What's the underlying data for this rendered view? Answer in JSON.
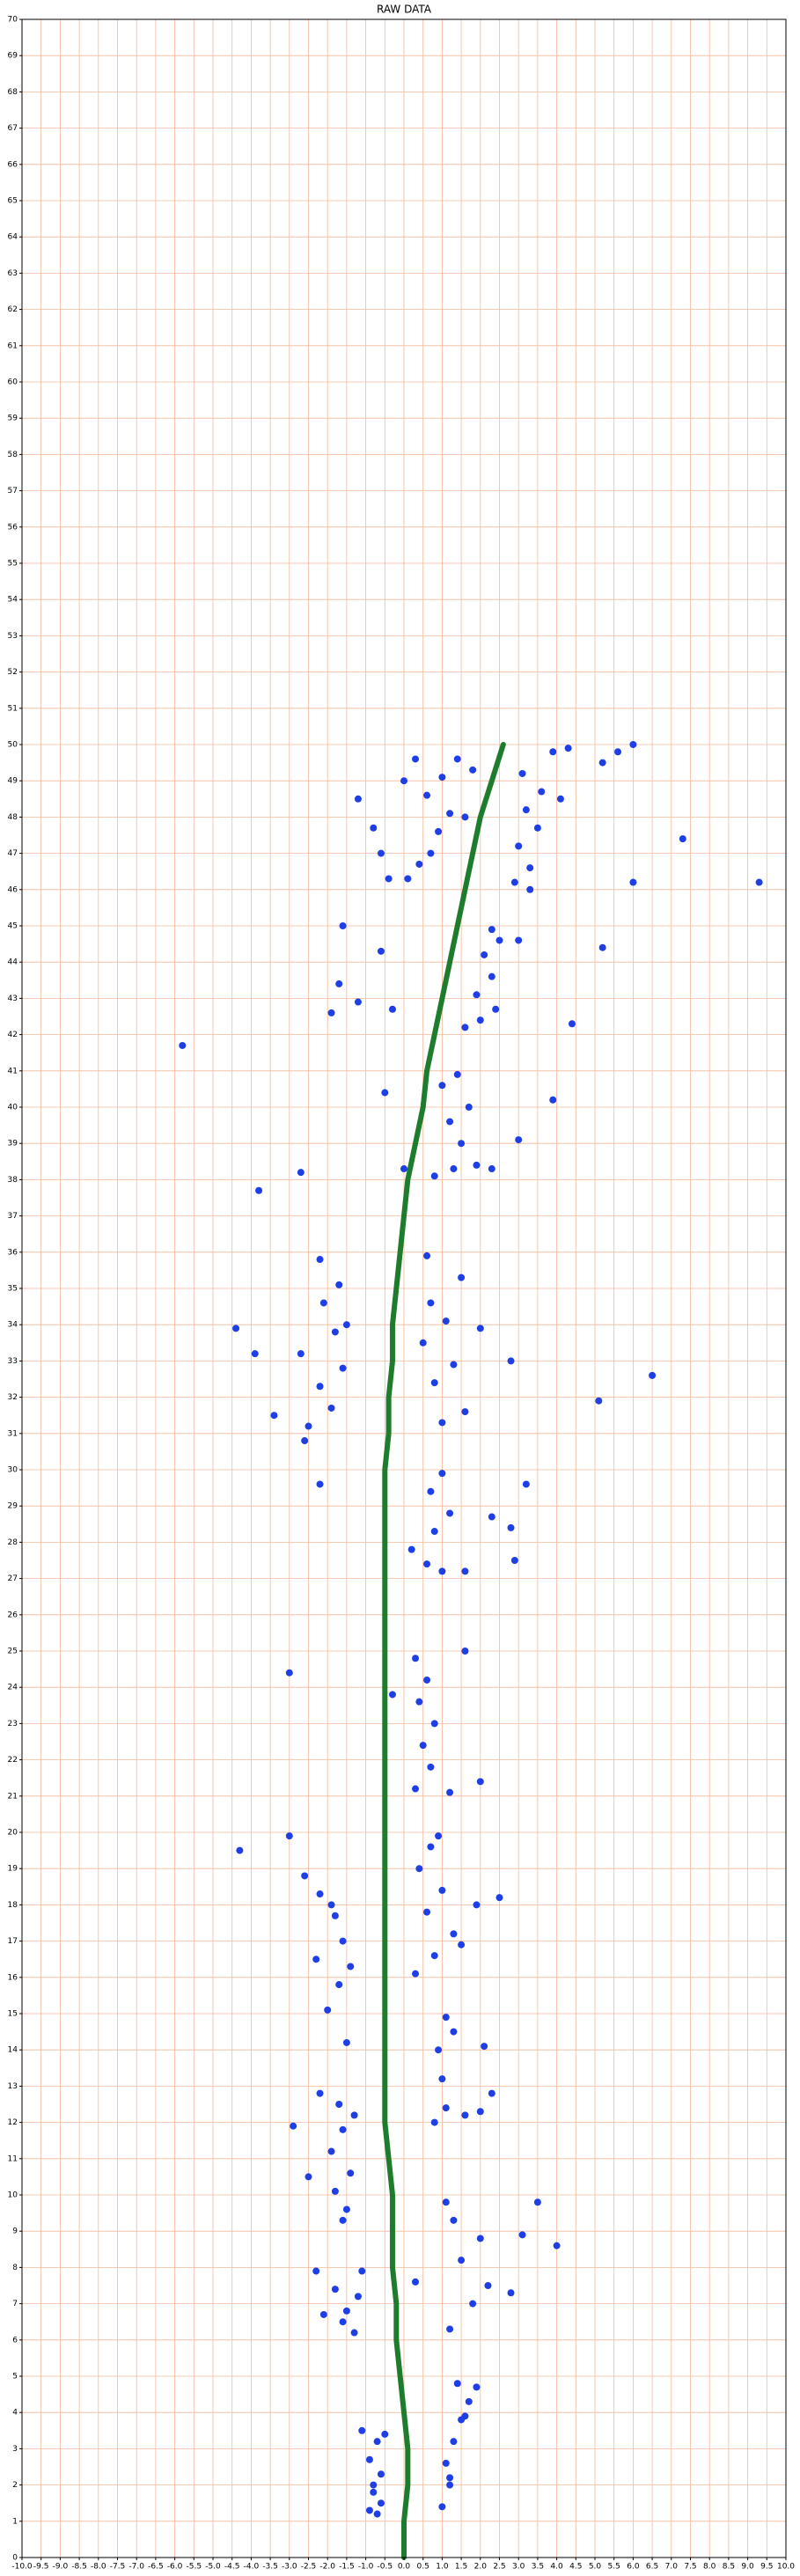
{
  "chart_data": {
    "type": "scatter",
    "title": "RAW DATA",
    "grid": true,
    "xlim": [
      -10,
      10
    ],
    "ylim": [
      0,
      70
    ],
    "xticks": [
      {
        "value": -10,
        "label": "-10.0"
      },
      -9.5,
      {
        "value": -9,
        "label": "-9.0"
      },
      -8.5,
      {
        "value": -8,
        "label": "-8.0"
      },
      -7.5,
      {
        "value": -7,
        "label": "-7.0"
      },
      -6.5,
      {
        "value": -6,
        "label": "-6.0"
      },
      -5.5,
      {
        "value": -5,
        "label": "-5.0"
      },
      -4.5,
      {
        "value": -4,
        "label": "-4.0"
      },
      -3.5,
      {
        "value": -3,
        "label": "-3.0"
      },
      -2.5,
      {
        "value": -2,
        "label": "-2.0"
      },
      -1.5,
      {
        "value": -1,
        "label": "-1.0"
      },
      -0.5,
      {
        "value": 0,
        "label": "0.0"
      },
      0.5,
      {
        "value": 1,
        "label": "1.0"
      },
      1.5,
      {
        "value": 2,
        "label": "2.0"
      },
      2.5,
      {
        "value": 3,
        "label": "3.0"
      },
      3.5,
      {
        "value": 4,
        "label": "4.0"
      },
      4.5,
      {
        "value": 5,
        "label": "5.0"
      },
      5.5,
      {
        "value": 6,
        "label": "6.0"
      },
      6.5,
      {
        "value": 7,
        "label": "7.0"
      },
      7.5,
      {
        "value": 8,
        "label": "8.0"
      },
      8.5,
      {
        "value": 9,
        "label": "9.0"
      },
      9.5,
      {
        "value": 10,
        "label": "10.0"
      }
    ],
    "yticks": [
      0,
      1,
      2,
      3,
      4,
      5,
      6,
      7,
      8,
      9,
      10,
      11,
      12,
      13,
      14,
      15,
      16,
      17,
      18,
      19,
      20,
      21,
      22,
      23,
      24,
      25,
      26,
      27,
      28,
      29,
      30,
      31,
      32,
      33,
      34,
      35,
      36,
      37,
      38,
      39,
      40,
      41,
      42,
      43,
      44,
      45,
      46,
      47,
      48,
      49,
      50,
      51,
      52,
      53,
      54,
      55,
      56,
      57,
      58,
      59,
      60,
      61,
      62,
      63,
      64,
      65,
      66,
      67,
      68,
      69,
      70
    ],
    "series": [
      {
        "style": "scatter",
        "color": "#1f3fe6",
        "x": [
          -0.7,
          -0.8,
          -0.6,
          -0.9,
          -0.7,
          -0.5,
          -1.1,
          -0.8,
          -0.6,
          -0.9,
          1.0,
          1.2,
          1.1,
          1.3,
          1.5,
          1.7,
          1.4,
          1.9,
          1.2,
          1.6,
          -1.3,
          -1.5,
          -1.8,
          -1.1,
          -2.3,
          -1.6,
          -1.2,
          -2.1,
          1.2,
          1.8,
          2.2,
          1.5,
          2.0,
          1.3,
          3.1,
          3.5,
          4.0,
          2.8,
          0.3,
          1.1,
          -1.6,
          -1.8,
          -1.4,
          -1.9,
          -1.6,
          -1.7,
          -2.2,
          -1.3,
          -2.5,
          -1.5,
          -2.9,
          0.8,
          1.1,
          1.6,
          2.0,
          2.3,
          1.0,
          0.9,
          1.3,
          1.1,
          2.1,
          -1.5,
          -2.0,
          -1.7,
          -2.3,
          -1.6,
          -1.8,
          -2.2,
          -2.6,
          -3.0,
          -4.3,
          -1.4,
          -1.9,
          0.3,
          0.8,
          1.3,
          0.6,
          1.0,
          0.4,
          0.7,
          1.9,
          2.5,
          1.5,
          0.9,
          0.3,
          0.7,
          1.2,
          0.5,
          0.8,
          0.4,
          0.6,
          0.3,
          1.6,
          2.0,
          -0.3,
          -3.0,
          0.2,
          0.6,
          1.0,
          1.6,
          0.8,
          1.2,
          0.7,
          1.0,
          2.3,
          2.8,
          2.9,
          3.2,
          -2.5,
          -1.9,
          -2.2,
          -1.6,
          -2.7,
          -1.8,
          -2.1,
          -1.7,
          -2.2,
          -3.4,
          -3.9,
          -4.4,
          -2.6,
          -1.5,
          -2.2,
          1.0,
          1.6,
          0.8,
          1.3,
          0.5,
          1.1,
          0.7,
          1.5,
          0.6,
          2.0,
          2.8,
          5.1,
          6.5,
          0.8,
          1.3,
          1.9,
          2.3,
          1.5,
          1.2,
          1.7,
          1.0,
          1.4,
          3.0,
          3.9,
          -3.8,
          -2.7,
          0.0,
          -0.5,
          1.6,
          2.0,
          2.4,
          1.9,
          2.3,
          2.1,
          2.5,
          2.3,
          4.4,
          5.2,
          3.0,
          -1.7,
          -1.2,
          -1.9,
          -1.6,
          -0.6,
          -0.3,
          -5.8,
          0.1,
          0.4,
          0.7,
          0.9,
          1.2,
          0.6,
          1.0,
          1.4,
          1.8,
          0.3,
          0.0,
          1.6,
          -1.2,
          -0.8,
          -0.6,
          -0.4,
          2.9,
          3.3,
          3.0,
          3.5,
          3.2,
          3.6,
          3.1,
          3.9,
          4.3,
          3.3,
          4.1,
          6.0,
          5.6,
          5.2,
          6.0,
          7.3,
          9.3
        ],
        "values": [
          1.2,
          1.8,
          2.3,
          2.7,
          3.2,
          3.4,
          3.5,
          2.0,
          1.5,
          1.3,
          1.4,
          2.0,
          2.6,
          3.2,
          3.8,
          4.3,
          4.8,
          4.7,
          2.2,
          3.9,
          6.2,
          6.8,
          7.4,
          7.9,
          7.9,
          6.5,
          7.2,
          6.7,
          6.3,
          7.0,
          7.5,
          8.2,
          8.8,
          9.3,
          8.9,
          9.8,
          8.6,
          7.3,
          7.6,
          9.8,
          9.3,
          10.1,
          10.6,
          11.2,
          11.8,
          12.5,
          12.8,
          12.2,
          10.5,
          9.6,
          11.9,
          12.0,
          12.4,
          12.2,
          12.3,
          12.8,
          13.2,
          14.0,
          14.5,
          14.9,
          14.1,
          14.2,
          15.1,
          15.8,
          16.5,
          17.0,
          17.7,
          18.3,
          18.8,
          19.9,
          19.5,
          16.3,
          18.0,
          16.1,
          16.6,
          17.2,
          17.8,
          18.4,
          19.0,
          19.6,
          18.0,
          18.2,
          16.9,
          19.9,
          21.2,
          21.8,
          21.1,
          22.4,
          23.0,
          23.6,
          24.2,
          24.8,
          25.0,
          21.4,
          23.8,
          24.4,
          27.8,
          27.4,
          27.2,
          27.2,
          28.3,
          28.8,
          29.4,
          29.9,
          28.7,
          28.4,
          27.5,
          29.6,
          31.2,
          31.7,
          32.3,
          32.8,
          33.2,
          33.8,
          34.6,
          35.1,
          35.8,
          31.5,
          33.2,
          33.9,
          30.8,
          34.0,
          29.6,
          31.3,
          31.6,
          32.4,
          32.9,
          33.5,
          34.1,
          34.6,
          35.3,
          35.9,
          33.9,
          33.0,
          31.9,
          32.6,
          38.1,
          38.3,
          38.4,
          38.3,
          39.0,
          39.6,
          40.0,
          40.6,
          40.9,
          39.1,
          40.2,
          37.7,
          38.2,
          38.3,
          40.4,
          42.2,
          42.4,
          42.7,
          43.1,
          43.6,
          44.2,
          44.6,
          44.9,
          42.3,
          44.4,
          44.6,
          43.4,
          42.9,
          42.6,
          45.0,
          44.3,
          42.7,
          41.7,
          46.3,
          46.7,
          47.0,
          47.6,
          48.1,
          48.6,
          49.1,
          49.6,
          49.3,
          49.6,
          49.0,
          48.0,
          48.5,
          47.7,
          47.0,
          46.3,
          46.2,
          46.6,
          47.2,
          47.7,
          48.2,
          48.7,
          49.2,
          49.8,
          49.9,
          46.0,
          48.5,
          50.0,
          49.8,
          49.5,
          46.2,
          47.4,
          46.2
        ]
      },
      {
        "style": "line",
        "color": "#1e7d2c",
        "x": [
          0,
          0,
          0.1,
          0.1,
          0,
          -0.1,
          -0.2,
          -0.2,
          -0.3,
          -0.3,
          -0.3,
          -0.4,
          -0.5,
          -0.5,
          -0.5,
          -0.5,
          -0.5,
          -0.5,
          -0.5,
          -0.5,
          -0.5,
          -0.5,
          -0.5,
          -0.5,
          -0.5,
          -0.5,
          -0.5,
          -0.5,
          -0.5,
          -0.5,
          -0.5,
          -0.4,
          -0.4,
          -0.3,
          -0.3,
          -0.2,
          -0.1,
          0,
          0.1,
          0.3,
          0.5,
          0.6,
          0.8,
          1,
          1.2,
          1.4,
          1.6,
          1.8,
          2,
          2.3,
          2.6
        ],
        "values": [
          0,
          1,
          2,
          3,
          4,
          5,
          6,
          7,
          8,
          9,
          10,
          11,
          12,
          13,
          14,
          15,
          16,
          17,
          18,
          19,
          20,
          21,
          22,
          23,
          24,
          25,
          26,
          27,
          28,
          29,
          30,
          31,
          32,
          33,
          34,
          35,
          36,
          37,
          38,
          39,
          40,
          41,
          42,
          43,
          44,
          45,
          46,
          47,
          48,
          49,
          50
        ]
      }
    ]
  }
}
